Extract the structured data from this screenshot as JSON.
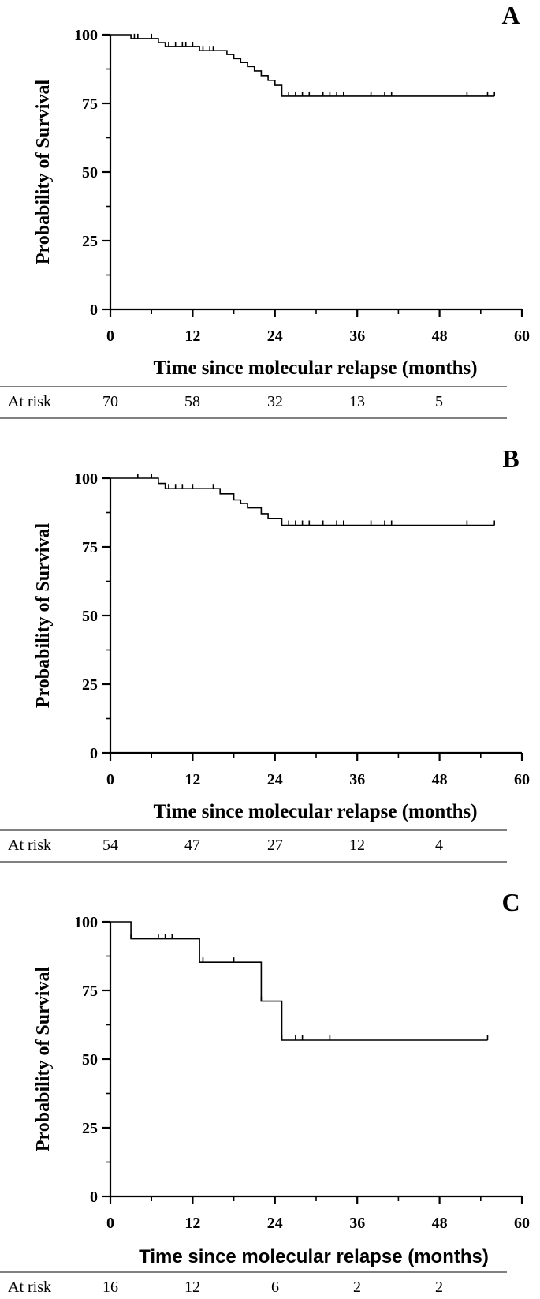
{
  "chart_data": [
    {
      "type": "line",
      "panel": "A",
      "ylabel": "Probability of Survival",
      "xlabel": "Time since molecular relapse (months)",
      "xlim": [
        0,
        60
      ],
      "ylim": [
        0,
        100
      ],
      "x_ticks": [
        "0",
        "12",
        "24",
        "36",
        "48",
        "60"
      ],
      "y_ticks": [
        "0",
        "25",
        "50",
        "75",
        "100"
      ],
      "grid": false,
      "series": [
        {
          "name": "Survival",
          "steps": [
            [
              0,
              100
            ],
            [
              3,
              98.6
            ],
            [
              7,
              97.1
            ],
            [
              8,
              95.7
            ],
            [
              13,
              94.2
            ],
            [
              17,
              92.8
            ],
            [
              18,
              91.3
            ],
            [
              19,
              89.9
            ],
            [
              20,
              88.4
            ],
            [
              21,
              86.8
            ],
            [
              22,
              85.1
            ],
            [
              23,
              83.4
            ],
            [
              24,
              81.6
            ],
            [
              25,
              77.6
            ],
            [
              56,
              77.6
            ]
          ],
          "censored": [
            [
              3.5,
              98.6
            ],
            [
              4,
              98.6
            ],
            [
              6,
              98.6
            ],
            [
              8.5,
              95.7
            ],
            [
              9.5,
              95.7
            ],
            [
              10.5,
              95.7
            ],
            [
              11,
              95.7
            ],
            [
              12,
              95.7
            ],
            [
              13.5,
              94.2
            ],
            [
              14.5,
              94.2
            ],
            [
              15,
              94.2
            ],
            [
              26,
              77.6
            ],
            [
              27,
              77.6
            ],
            [
              28,
              77.6
            ],
            [
              29,
              77.6
            ],
            [
              31,
              77.6
            ],
            [
              32,
              77.6
            ],
            [
              33,
              77.6
            ],
            [
              34,
              77.6
            ],
            [
              38,
              77.6
            ],
            [
              40,
              77.6
            ],
            [
              41,
              77.6
            ],
            [
              52,
              77.6
            ],
            [
              55,
              77.6
            ],
            [
              56,
              77.6
            ]
          ]
        }
      ],
      "at_risk": {
        "label": "At risk",
        "values": [
          "70",
          "58",
          "32",
          "13",
          "5"
        ],
        "times": [
          0,
          12,
          24,
          36,
          48
        ]
      }
    },
    {
      "type": "line",
      "panel": "B",
      "ylabel": "Probability of Survival",
      "xlabel": "Time since molecular relapse (months)",
      "xlim": [
        0,
        60
      ],
      "ylim": [
        0,
        100
      ],
      "x_ticks": [
        "0",
        "12",
        "24",
        "36",
        "48",
        "60"
      ],
      "y_ticks": [
        "0",
        "25",
        "50",
        "75",
        "100"
      ],
      "grid": false,
      "series": [
        {
          "name": "Survival",
          "steps": [
            [
              0,
              100
            ],
            [
              7,
              98.1
            ],
            [
              8,
              96.2
            ],
            [
              16,
              94.3
            ],
            [
              18,
              92.1
            ],
            [
              19,
              90.8
            ],
            [
              20,
              89.2
            ],
            [
              22,
              87.1
            ],
            [
              23,
              85.3
            ],
            [
              25,
              82.9
            ],
            [
              56,
              82.9
            ]
          ],
          "censored": [
            [
              4,
              100
            ],
            [
              6,
              100
            ],
            [
              8.5,
              96.2
            ],
            [
              9.5,
              96.2
            ],
            [
              10.5,
              96.2
            ],
            [
              12,
              96.2
            ],
            [
              15,
              96.2
            ],
            [
              26,
              82.9
            ],
            [
              27,
              82.9
            ],
            [
              28,
              82.9
            ],
            [
              29,
              82.9
            ],
            [
              31,
              82.9
            ],
            [
              33,
              82.9
            ],
            [
              34,
              82.9
            ],
            [
              38,
              82.9
            ],
            [
              40,
              82.9
            ],
            [
              41,
              82.9
            ],
            [
              52,
              82.9
            ],
            [
              56,
              82.9
            ]
          ]
        }
      ],
      "at_risk": {
        "label": "At risk",
        "values": [
          "54",
          "47",
          "27",
          "12",
          "4"
        ],
        "times": [
          0,
          12,
          24,
          36,
          48
        ]
      }
    },
    {
      "type": "line",
      "panel": "C",
      "ylabel": "Probability of Survival",
      "xlabel": "Time since molecular relapse (months)",
      "xlim": [
        0,
        60
      ],
      "ylim": [
        0,
        100
      ],
      "x_ticks": [
        "0",
        "12",
        "24",
        "36",
        "48",
        "60"
      ],
      "y_ticks": [
        "0",
        "25",
        "50",
        "75",
        "100"
      ],
      "grid": false,
      "series": [
        {
          "name": "Survival",
          "steps": [
            [
              0,
              100
            ],
            [
              3,
              93.8
            ],
            [
              13,
              85.3
            ],
            [
              22,
              71.1
            ],
            [
              25,
              56.9
            ],
            [
              55,
              56.9
            ]
          ],
          "censored": [
            [
              3,
              93.8
            ],
            [
              7,
              93.8
            ],
            [
              8,
              93.8
            ],
            [
              9,
              93.8
            ],
            [
              13.5,
              85.3
            ],
            [
              18,
              85.3
            ],
            [
              22,
              71.1
            ],
            [
              25,
              56.9
            ],
            [
              27,
              56.9
            ],
            [
              28,
              56.9
            ],
            [
              32,
              56.9
            ],
            [
              55,
              56.9
            ]
          ]
        }
      ],
      "at_risk": {
        "label": "At risk",
        "values": [
          "16",
          "12",
          "6",
          "2",
          "2"
        ],
        "times": [
          0,
          12,
          24,
          36,
          48
        ]
      }
    }
  ]
}
